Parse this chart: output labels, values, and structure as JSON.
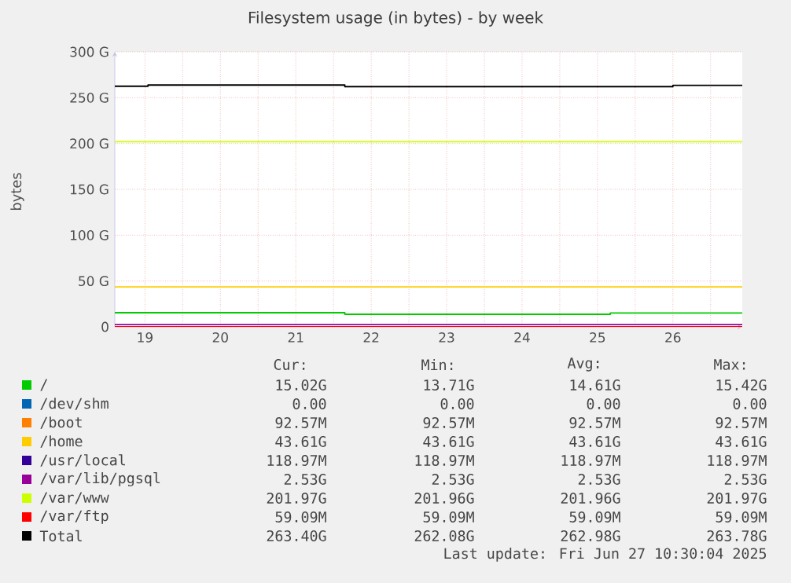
{
  "chart_data": {
    "type": "step",
    "title": "Filesystem usage (in bytes) - by week",
    "ylabel": "bytes",
    "xlim": [
      19.1,
      27.42
    ],
    "ylim": [
      0,
      300
    ],
    "xticks": [
      {
        "value": 19.5,
        "label": "19"
      },
      {
        "value": 20,
        "label": null
      },
      {
        "value": 20.5,
        "label": "20"
      },
      {
        "value": 21,
        "label": null
      },
      {
        "value": 21.5,
        "label": "21"
      },
      {
        "value": 22,
        "label": null
      },
      {
        "value": 22.5,
        "label": "22"
      },
      {
        "value": 23,
        "label": null
      },
      {
        "value": 23.5,
        "label": "23"
      },
      {
        "value": 24,
        "label": null
      },
      {
        "value": 24.5,
        "label": "24"
      },
      {
        "value": 25,
        "label": null
      },
      {
        "value": 25.5,
        "label": "25"
      },
      {
        "value": 26,
        "label": null
      },
      {
        "value": 26.5,
        "label": "26"
      },
      {
        "value": 27,
        "label": null
      }
    ],
    "yticks": [
      0,
      {
        "value": 50,
        "label": "50 G"
      },
      {
        "value": 100,
        "label": "100 G"
      },
      {
        "value": 150,
        "label": "150 G"
      },
      {
        "value": 200,
        "label": "200 G"
      },
      {
        "value": 250,
        "label": "250 G"
      },
      {
        "value": 300,
        "label": "300 G"
      }
    ],
    "grid": true,
    "legend": "bottom",
    "series": [
      {
        "name": "/",
        "color": "#00cc00",
        "x": [
          19.1,
          22.15,
          25.67,
          27.42
        ],
        "values": [
          15.42,
          13.71,
          15.02,
          15.02
        ]
      },
      {
        "name": "/dev/shm",
        "color": "#0066b3",
        "values": [
          null,
          null
        ]
      },
      {
        "name": "/boot",
        "color": "#ff8000",
        "values": [
          null,
          null
        ]
      },
      {
        "name": "/home",
        "color": "#ffcc00",
        "x": [
          19.1,
          27.42
        ],
        "values": [
          43.61,
          43.61
        ]
      },
      {
        "name": "/usr/local",
        "color": "#330099",
        "values": [
          null,
          null
        ]
      },
      {
        "name": "/var/lib/pgsql",
        "color": "#990099",
        "x": [
          19.1,
          27.42
        ],
        "values": [
          2.53,
          2.53
        ]
      },
      {
        "name": "/var/www",
        "color": "#ccff00",
        "x": [
          19.1,
          27.42
        ],
        "values": [
          201.97,
          201.97
        ]
      },
      {
        "name": "/var/ftp",
        "color": "#ff0000",
        "x": [
          19.1,
          27.42
        ],
        "values": [
          0.05909,
          0.05909
        ]
      },
      {
        "name": "Total",
        "color": "#000000",
        "x": [
          19.1,
          19.54,
          22.15,
          26.5,
          27.42
        ],
        "values": [
          262.5,
          263.78,
          262.08,
          263.4,
          263.4
        ]
      }
    ],
    "annotations": [
      "Cur:",
      "Min:",
      "Avg:",
      "Max:",
      "15.02G",
      "13.71G",
      "14.61G",
      "15.42G",
      "0.00",
      "0.00",
      "0.00",
      "0.00",
      "92.57M",
      "92.57M",
      "92.57M",
      "92.57M",
      "43.61G",
      "43.61G",
      "43.61G",
      "43.61G",
      "118.97M",
      "118.97M",
      "118.97M",
      "118.97M",
      "2.53G",
      "2.53G",
      "2.53G",
      "2.53G",
      "201.97G",
      "201.96G",
      "201.96G",
      "201.97G",
      "59.09M",
      "59.09M",
      "59.09M",
      "59.09M",
      "263.40G",
      "262.08G",
      "262.98G",
      "263.78G",
      "Last update: Fri Jun 27 10:30:04 2025"
    ]
  }
}
